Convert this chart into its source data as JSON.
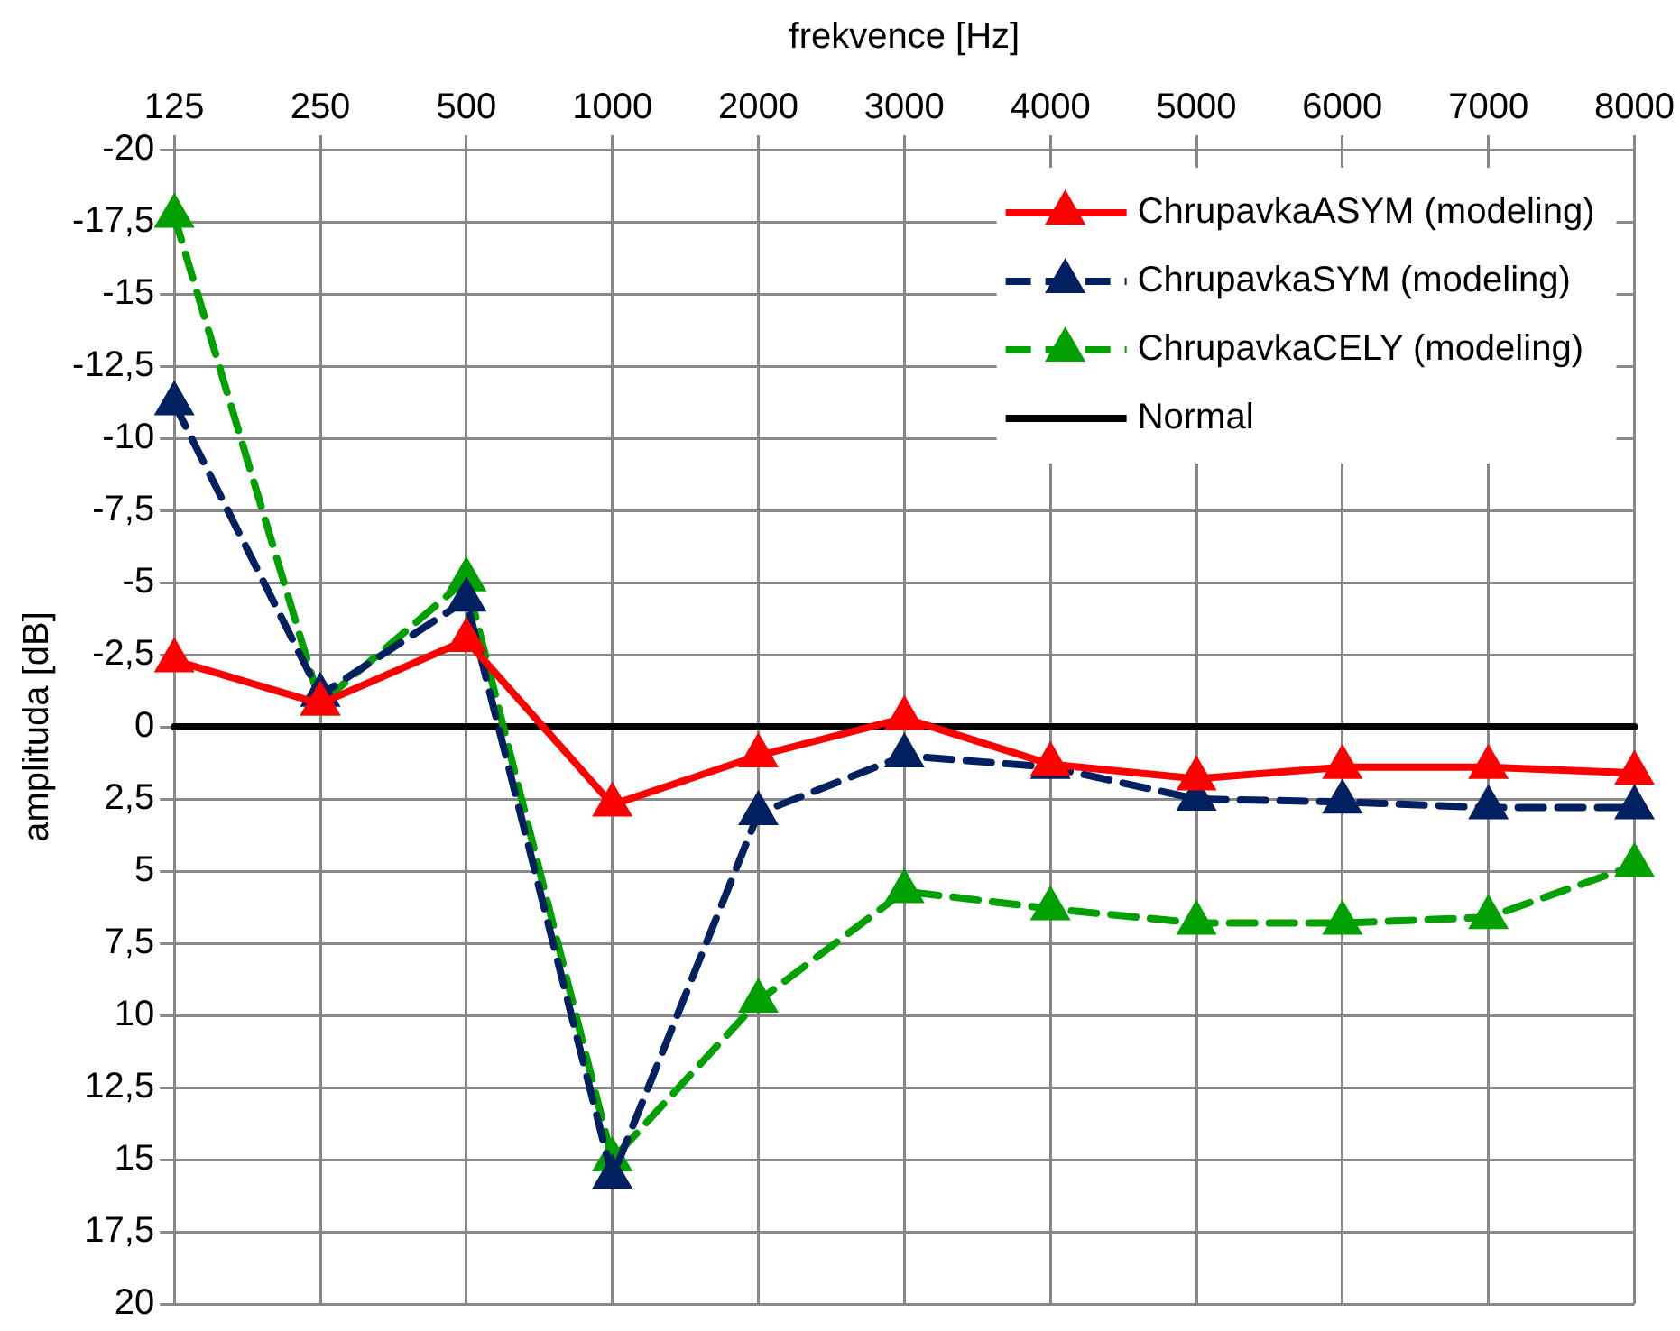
{
  "chart_data": {
    "type": "line",
    "xlabel": "frekvence [Hz]",
    "ylabel": "amplituda [dB]",
    "categories": [
      "125",
      "250",
      "500",
      "1000",
      "2000",
      "3000",
      "4000",
      "5000",
      "6000",
      "7000",
      "8000"
    ],
    "ylim": [
      20,
      -20
    ],
    "yticks": [
      -20,
      {
        "value": -17.5,
        "label": "-17,5"
      },
      -15,
      {
        "value": -12.5,
        "label": "-12,5"
      },
      -10,
      {
        "value": -7.5,
        "label": "-7,5"
      },
      -5,
      {
        "value": -2.5,
        "label": "-2,5"
      },
      0,
      {
        "value": 2.5,
        "label": "2,5"
      },
      5,
      {
        "value": 7.5,
        "label": "7,5"
      },
      10,
      {
        "value": 12.5,
        "label": "12,5"
      },
      15,
      {
        "value": 17.5,
        "label": "17,5"
      },
      20
    ],
    "grid": true,
    "legend": "top right",
    "marker": "triangle",
    "series": [
      {
        "name": "ChrupavkaASYM (modeling)",
        "color": "#ff0000",
        "line_style": "solid",
        "values": [
          -2.3,
          -0.8,
          -3.0,
          2.7,
          1.0,
          -0.3,
          1.3,
          1.8,
          1.4,
          1.4,
          1.6
        ]
      },
      {
        "name": "ChrupavkaSYM (modeling)",
        "color": "#002060",
        "line_style": "dashed",
        "values": [
          -11.2,
          -1.1,
          -4.4,
          15.6,
          3.0,
          1.0,
          1.4,
          2.5,
          2.6,
          2.8,
          2.8
        ]
      },
      {
        "name": "ChrupavkaCELY (modeling)",
        "color": "#00a000",
        "line_style": "dashed",
        "values": [
          -17.7,
          -0.8,
          -5.1,
          15.0,
          9.5,
          5.7,
          6.3,
          6.8,
          6.8,
          6.6,
          4.8
        ]
      },
      {
        "name": "Normal",
        "color": "#000000",
        "line_style": "solid",
        "marker": "none",
        "values": [
          0,
          0,
          0,
          0,
          0,
          0,
          0,
          0,
          0,
          0,
          0
        ]
      }
    ]
  }
}
